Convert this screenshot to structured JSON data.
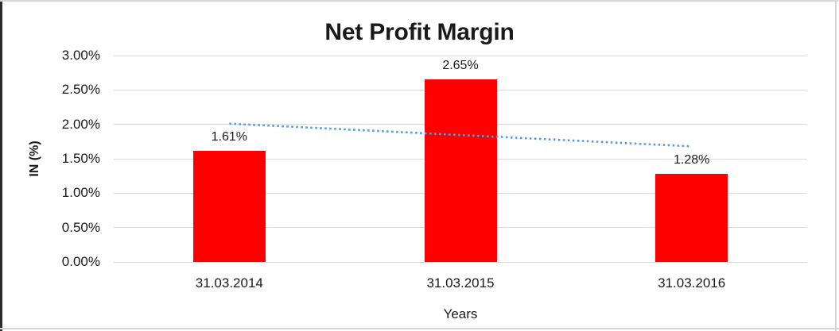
{
  "window": {
    "background": "#ffffff",
    "frame": {
      "left_edge_color": "#2b2b2b",
      "top_edge_color": "#d6d6d6",
      "right_edge_color": "#d6d6d6",
      "bottom_edge_color": "#d6d6d6"
    }
  },
  "chart_data": {
    "type": "bar",
    "title": "Net Profit Margin",
    "xlabel": "Years",
    "ylabel": "IN (%)",
    "categories": [
      "31.03.2014",
      "31.03.2015",
      "31.03.2016"
    ],
    "values": [
      1.61,
      2.65,
      1.28
    ],
    "data_labels": [
      "1.61%",
      "2.65%",
      "1.28%"
    ],
    "ylim": [
      0,
      3
    ],
    "ytick_step": 0.5,
    "ytick_labels": [
      "0.00%",
      "0.50%",
      "1.00%",
      "1.50%",
      "2.00%",
      "2.50%",
      "3.00%"
    ],
    "grid": true,
    "legend": "none",
    "gridline_color": "#d9d9d9",
    "bar_color": "#ff0000",
    "text_color": "#1a1a1a",
    "title_color": "#1a1a1a",
    "trendline": {
      "type": "linear",
      "style": "dotted",
      "color": "#5b9bd5",
      "start_value": 2.01,
      "end_value": 1.68
    }
  }
}
